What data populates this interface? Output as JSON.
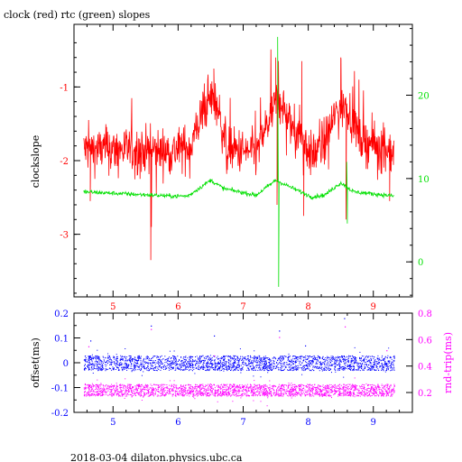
{
  "title": "clock (red) rtc (green) slopes",
  "footer": "2018-03-04 dilaton.physics.ubc.ca",
  "colors": {
    "clock": "#ff0000",
    "rtc": "#00e000",
    "offset": "#0000ff",
    "rnd_trip": "#ff00ff",
    "axis": "#000000"
  },
  "chart_data": [
    {
      "type": "line",
      "title": "clock (red) rtc (green) slopes",
      "ylabel": "clockslope",
      "xlim": [
        4.4,
        9.6
      ],
      "ylim": [
        -3.85,
        -0.15
      ],
      "y2lim": [
        -4.2,
        28.5
      ],
      "x_ticks": [
        5,
        6,
        7,
        8,
        9
      ],
      "y_ticks": [
        -1,
        -2,
        -3
      ],
      "y2_ticks": [
        0,
        10,
        20
      ],
      "grid": false,
      "x_range": [
        4.55,
        9.32
      ],
      "series": [
        {
          "name": "clock",
          "axis": "left",
          "color": "#ff0000",
          "baseline": [
            [
              4.55,
              -1.85
            ],
            [
              5.2,
              -1.85
            ],
            [
              5.9,
              -1.88
            ],
            [
              6.2,
              -1.8
            ],
            [
              6.35,
              -1.4
            ],
            [
              6.5,
              -1.15
            ],
            [
              6.6,
              -1.25
            ],
            [
              6.75,
              -1.85
            ],
            [
              7.2,
              -1.9
            ],
            [
              7.4,
              -1.45
            ],
            [
              7.55,
              -1.1
            ],
            [
              7.7,
              -1.5
            ],
            [
              7.9,
              -1.65
            ],
            [
              8.05,
              -1.95
            ],
            [
              8.25,
              -1.75
            ],
            [
              8.45,
              -1.3
            ],
            [
              8.6,
              -1.25
            ],
            [
              8.8,
              -1.7
            ],
            [
              9.32,
              -1.9
            ]
          ],
          "noise": 0.3,
          "spikes": [
            [
              5.58,
              -3.35
            ],
            [
              5.59,
              -2.9
            ],
            [
              6.55,
              -0.75
            ],
            [
              7.5,
              -0.6
            ],
            [
              7.52,
              -2.6
            ],
            [
              7.9,
              -0.65
            ],
            [
              7.93,
              -2.75
            ],
            [
              8.5,
              -0.6
            ],
            [
              8.58,
              -2.8
            ],
            [
              4.65,
              -2.55
            ],
            [
              9.25,
              -2.55
            ]
          ]
        },
        {
          "name": "rtc",
          "axis": "right",
          "color": "#00e000",
          "baseline": [
            [
              4.55,
              8.4
            ],
            [
              5.9,
              7.9
            ],
            [
              6.15,
              7.9
            ],
            [
              6.5,
              9.8
            ],
            [
              6.7,
              8.8
            ],
            [
              7.2,
              8.0
            ],
            [
              7.5,
              9.8
            ],
            [
              7.8,
              8.7
            ],
            [
              8.05,
              7.8
            ],
            [
              8.25,
              8.0
            ],
            [
              8.5,
              9.5
            ],
            [
              8.7,
              8.4
            ],
            [
              9.32,
              7.9
            ]
          ],
          "noise": 0.25,
          "spikes": [
            [
              7.53,
              27.0
            ],
            [
              7.545,
              -3.0
            ],
            [
              8.6,
              4.6
            ],
            [
              8.59,
              12.0
            ]
          ]
        }
      ]
    },
    {
      "type": "scatter",
      "ylabel": "offset(ms)",
      "y2label": "rnd-trip(ms)",
      "xlim": [
        4.4,
        9.6
      ],
      "ylim": [
        -0.2,
        0.2
      ],
      "y2lim": [
        0.05,
        0.8
      ],
      "x_ticks": [
        5,
        6,
        7,
        8,
        9
      ],
      "y_ticks": [
        0.2,
        0.1,
        0,
        -0.1,
        -0.2
      ],
      "y2_ticks": [
        0.8,
        0.6,
        0.4,
        0.2
      ],
      "grid": false,
      "x_range": [
        4.55,
        9.32
      ],
      "series": [
        {
          "name": "offset",
          "axis": "left",
          "color": "#0000ff",
          "center": 0.0,
          "spread": 0.03,
          "outliers": [
            [
              5.58,
              0.15
            ],
            [
              6.55,
              0.11
            ],
            [
              7.55,
              0.13
            ],
            [
              7.95,
              0.07
            ],
            [
              8.55,
              0.18
            ],
            [
              4.65,
              0.09
            ]
          ]
        },
        {
          "name": "rnd_trip",
          "axis": "right",
          "color": "#ff00ff",
          "center": 0.22,
          "spread": 0.045,
          "outliers": [
            [
              4.62,
              0.55
            ],
            [
              5.58,
              0.68
            ],
            [
              6.55,
              0.48
            ],
            [
              7.55,
              0.62
            ],
            [
              8.56,
              0.7
            ],
            [
              9.2,
              0.52
            ]
          ]
        }
      ]
    }
  ]
}
